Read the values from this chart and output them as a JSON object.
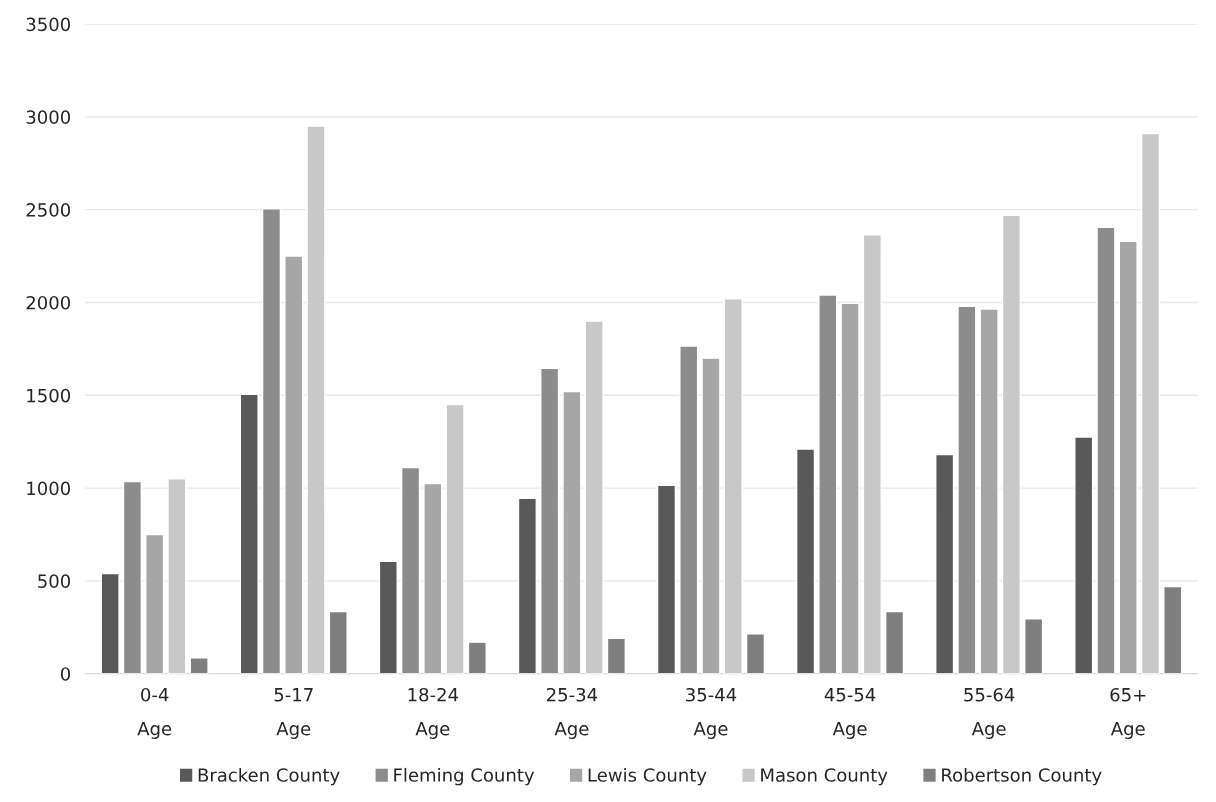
{
  "chart_data": {
    "type": "bar",
    "categories": [
      "0-4\nAge",
      "5-17\nAge",
      "18-24\nAge",
      "25-34\nAge",
      "35-44\nAge",
      "45-54\nAge",
      "55-64\nAge",
      "65+\nAge"
    ],
    "series": [
      {
        "name": "Bracken County",
        "color": "#595959",
        "values": [
          540,
          1505,
          605,
          945,
          1015,
          1210,
          1180,
          1275
        ]
      },
      {
        "name": "Fleming County",
        "color": "#8c8c8c",
        "values": [
          1035,
          2505,
          1110,
          1645,
          1765,
          2040,
          1980,
          2405
        ]
      },
      {
        "name": "Lewis County",
        "color": "#a6a6a6",
        "values": [
          750,
          2250,
          1025,
          1520,
          1700,
          1995,
          1965,
          2330
        ]
      },
      {
        "name": "Mason County",
        "color": "#c8c8c8",
        "values": [
          1050,
          2950,
          1450,
          1900,
          2020,
          2365,
          2470,
          2910
        ]
      },
      {
        "name": "Robertson County",
        "color": "#7f7f7f",
        "values": [
          85,
          335,
          170,
          190,
          215,
          335,
          295,
          470
        ]
      }
    ],
    "ylim": [
      0,
      3500
    ],
    "yticks": [
      0,
      500,
      1000,
      1500,
      2000,
      2500,
      3000,
      3500
    ],
    "grid": "y",
    "legend": "bottom"
  }
}
